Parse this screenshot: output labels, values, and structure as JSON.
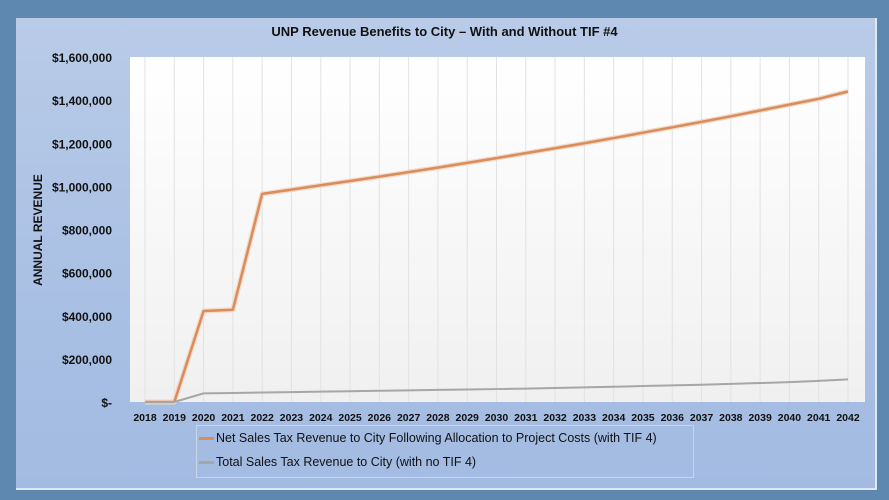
{
  "chart_data": {
    "type": "line",
    "title": "UNP Revenue Benefits to City – With and Without TIF #4",
    "xlabel": "",
    "ylabel": "ANNUAL REVENUE",
    "ylim": [
      0,
      1600000
    ],
    "yticks": [
      0,
      200000,
      400000,
      600000,
      800000,
      1000000,
      1200000,
      1400000,
      1600000
    ],
    "ytick_labels": [
      "$-",
      "$200,000",
      "$400,000",
      "$600,000",
      "$800,000",
      "$1,000,000",
      "$1,200,000",
      "$1,400,000",
      "$1,600,000"
    ],
    "categories": [
      "2018",
      "2019",
      "2020",
      "2021",
      "2022",
      "2023",
      "2024",
      "2025",
      "2026",
      "2027",
      "2028",
      "2029",
      "2030",
      "2031",
      "2032",
      "2033",
      "2034",
      "2035",
      "2036",
      "2037",
      "2038",
      "2039",
      "2040",
      "2041",
      "2042"
    ],
    "grid": "vertical",
    "legend_position": "bottom",
    "series": [
      {
        "name": "Net Sales Tax Revenue to City Following Allocation to Project Costs (with TIF 4)",
        "color": "#d98c5c",
        "values": [
          0,
          0,
          422000,
          428000,
          965000,
          985000,
          1005000,
          1025000,
          1045000,
          1066000,
          1087000,
          1109000,
          1131000,
          1154000,
          1177000,
          1200000,
          1224000,
          1249000,
          1274000,
          1299000,
          1325000,
          1352000,
          1379000,
          1406000,
          1440000
        ]
      },
      {
        "name": "Total Sales Tax Revenue to City (with no TIF 4)",
        "color": "#a6a6a6",
        "values": [
          0,
          0,
          40000,
          42000,
          44000,
          46000,
          48000,
          50000,
          52000,
          54000,
          56000,
          58000,
          60000,
          62000,
          65000,
          68000,
          71000,
          74000,
          77000,
          80000,
          84000,
          88000,
          92000,
          98000,
          105000
        ]
      }
    ]
  }
}
